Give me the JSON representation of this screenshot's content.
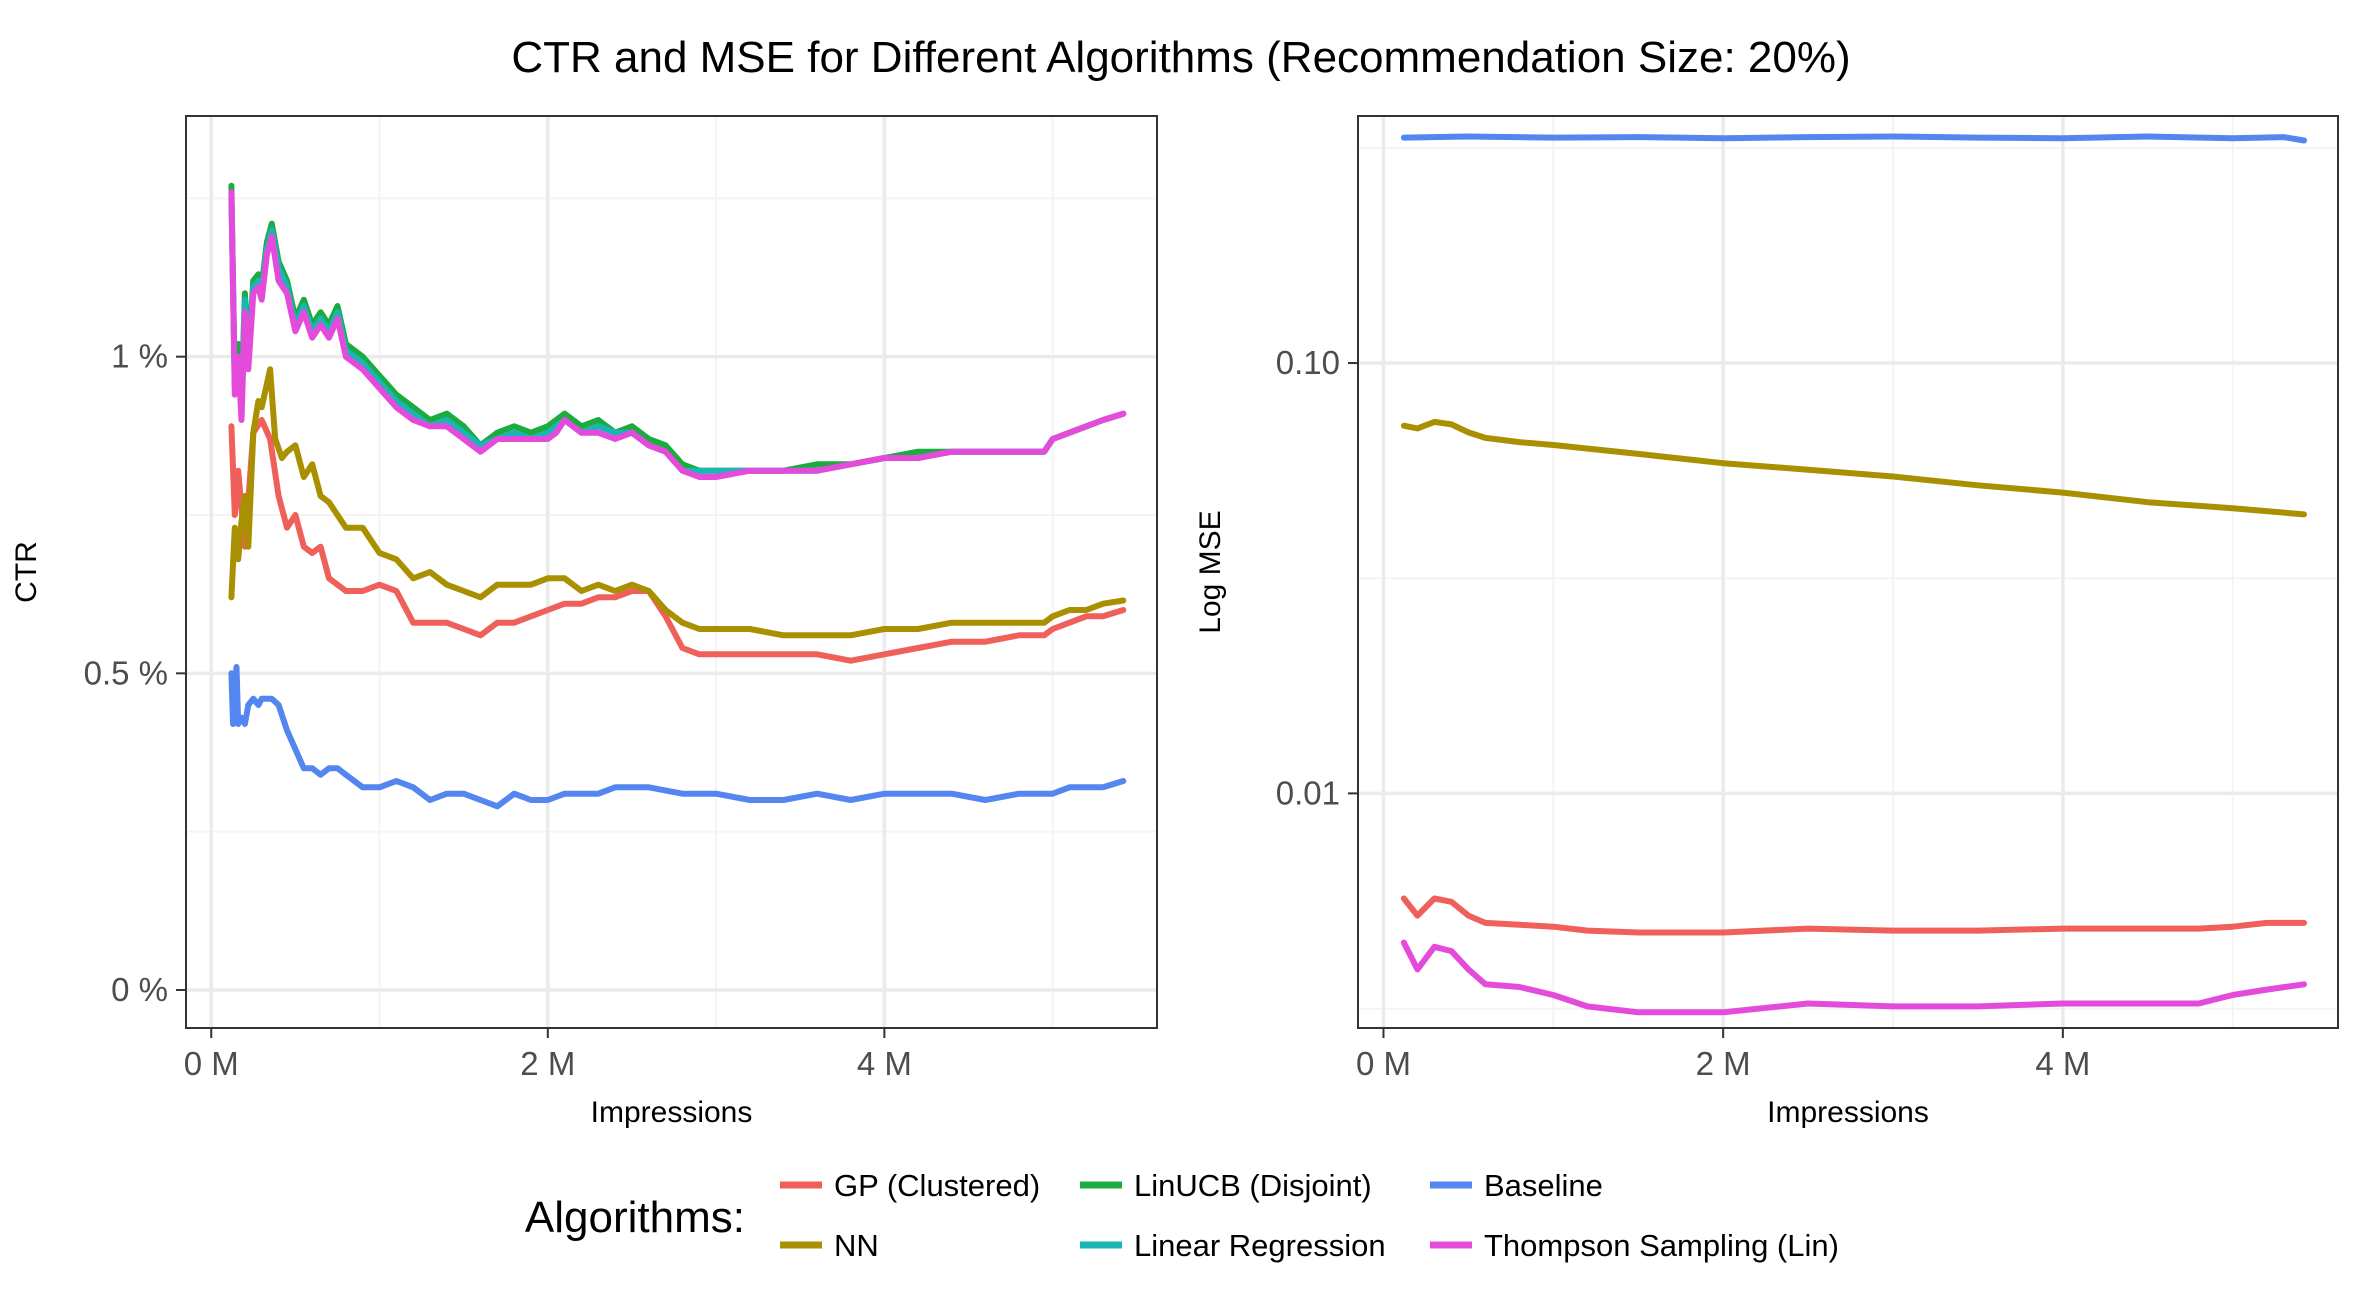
{
  "title": "CTR and MSE for Different Algorithms (Recommendation Size: 20%)",
  "legend": {
    "title": "Algorithms:",
    "entries": [
      {
        "name": "GP (Clustered)",
        "color": "#F0605A"
      },
      {
        "name": "NN",
        "color": "#A89000"
      },
      {
        "name": "LinUCB (Disjoint)",
        "color": "#1AAC3E"
      },
      {
        "name": "Linear Regression",
        "color": "#1BB5B5"
      },
      {
        "name": "Baseline",
        "color": "#5486F0"
      },
      {
        "name": "Thompson Sampling (Lin)",
        "color": "#E44BDB"
      }
    ]
  },
  "chart_data": [
    {
      "type": "line",
      "xlabel": "Impressions",
      "ylabel": "CTR",
      "xlim": [
        -0.15,
        5.62
      ],
      "ylim": [
        -0.06,
        1.38
      ],
      "xticks": [
        0,
        2,
        4
      ],
      "xtick_labels": [
        "0 M",
        "2 M",
        "4 M"
      ],
      "yticks": [
        0,
        0.5,
        1.0
      ],
      "ytick_labels": [
        "0 %",
        "0.5 %",
        "1 %"
      ],
      "x_unit": "million impressions",
      "y_unit": "percent",
      "grid": true,
      "series": [
        {
          "name": "GP (Clustered)",
          "color": "#F0605A",
          "x": [
            0.12,
            0.14,
            0.16,
            0.2,
            0.25,
            0.3,
            0.35,
            0.4,
            0.45,
            0.5,
            0.55,
            0.6,
            0.65,
            0.7,
            0.8,
            0.9,
            1.0,
            1.1,
            1.2,
            1.3,
            1.4,
            1.5,
            1.6,
            1.7,
            1.8,
            1.9,
            2.0,
            2.1,
            2.2,
            2.3,
            2.4,
            2.5,
            2.6,
            2.7,
            2.8,
            2.9,
            3.0,
            3.2,
            3.4,
            3.6,
            3.8,
            4.0,
            4.2,
            4.4,
            4.6,
            4.8,
            4.95,
            5.0,
            5.1,
            5.2,
            5.3,
            5.42
          ],
          "y": [
            0.89,
            0.75,
            0.82,
            0.7,
            0.88,
            0.9,
            0.87,
            0.78,
            0.73,
            0.75,
            0.7,
            0.69,
            0.7,
            0.65,
            0.63,
            0.63,
            0.64,
            0.63,
            0.58,
            0.58,
            0.58,
            0.57,
            0.56,
            0.58,
            0.58,
            0.59,
            0.6,
            0.61,
            0.61,
            0.62,
            0.62,
            0.63,
            0.63,
            0.59,
            0.54,
            0.53,
            0.53,
            0.53,
            0.53,
            0.53,
            0.52,
            0.53,
            0.54,
            0.55,
            0.55,
            0.56,
            0.56,
            0.57,
            0.58,
            0.59,
            0.59,
            0.6
          ]
        },
        {
          "name": "NN",
          "color": "#A89000",
          "x": [
            0.12,
            0.14,
            0.16,
            0.18,
            0.2,
            0.22,
            0.25,
            0.28,
            0.3,
            0.35,
            0.38,
            0.42,
            0.45,
            0.5,
            0.55,
            0.6,
            0.65,
            0.7,
            0.8,
            0.9,
            1.0,
            1.1,
            1.2,
            1.3,
            1.4,
            1.5,
            1.6,
            1.7,
            1.8,
            1.9,
            2.0,
            2.1,
            2.2,
            2.3,
            2.4,
            2.5,
            2.6,
            2.7,
            2.8,
            2.9,
            3.0,
            3.2,
            3.4,
            3.6,
            3.8,
            4.0,
            4.2,
            4.4,
            4.6,
            4.8,
            4.95,
            5.0,
            5.1,
            5.2,
            5.3,
            5.42
          ],
          "y": [
            0.62,
            0.73,
            0.68,
            0.74,
            0.78,
            0.7,
            0.88,
            0.93,
            0.92,
            0.98,
            0.87,
            0.84,
            0.85,
            0.86,
            0.81,
            0.83,
            0.78,
            0.77,
            0.73,
            0.73,
            0.69,
            0.68,
            0.65,
            0.66,
            0.64,
            0.63,
            0.62,
            0.64,
            0.64,
            0.64,
            0.65,
            0.65,
            0.63,
            0.64,
            0.63,
            0.64,
            0.63,
            0.6,
            0.58,
            0.57,
            0.57,
            0.57,
            0.56,
            0.56,
            0.56,
            0.57,
            0.57,
            0.58,
            0.58,
            0.58,
            0.58,
            0.59,
            0.6,
            0.6,
            0.61,
            0.615
          ]
        },
        {
          "name": "LinUCB (Disjoint)",
          "color": "#1AAC3E",
          "x": [
            0.12,
            0.14,
            0.16,
            0.18,
            0.2,
            0.22,
            0.25,
            0.28,
            0.3,
            0.33,
            0.36,
            0.4,
            0.45,
            0.5,
            0.55,
            0.6,
            0.65,
            0.7,
            0.75,
            0.8,
            0.9,
            1.0,
            1.1,
            1.2,
            1.3,
            1.4,
            1.5,
            1.6,
            1.7,
            1.8,
            1.9,
            2.0,
            2.05,
            2.1,
            2.2,
            2.3,
            2.4,
            2.5,
            2.6,
            2.7,
            2.8,
            2.9,
            3.0,
            3.2,
            3.4,
            3.6,
            3.8,
            4.0,
            4.2,
            4.4,
            4.6,
            4.8,
            4.95,
            5.0,
            5.1,
            5.2,
            5.3,
            5.42
          ],
          "y": [
            1.27,
            0.96,
            1.02,
            0.93,
            1.1,
            1.0,
            1.12,
            1.13,
            1.11,
            1.18,
            1.21,
            1.15,
            1.12,
            1.06,
            1.09,
            1.05,
            1.07,
            1.05,
            1.08,
            1.02,
            1.0,
            0.97,
            0.94,
            0.92,
            0.9,
            0.91,
            0.89,
            0.86,
            0.88,
            0.89,
            0.88,
            0.89,
            0.9,
            0.91,
            0.89,
            0.9,
            0.88,
            0.89,
            0.87,
            0.86,
            0.83,
            0.82,
            0.82,
            0.82,
            0.82,
            0.83,
            0.83,
            0.84,
            0.85,
            0.85,
            0.85,
            0.85,
            0.85,
            0.87,
            0.88,
            0.89,
            0.9,
            0.91
          ]
        },
        {
          "name": "Linear Regression",
          "color": "#1BB5B5",
          "x": [
            0.12,
            0.14,
            0.16,
            0.18,
            0.2,
            0.22,
            0.25,
            0.28,
            0.3,
            0.33,
            0.36,
            0.4,
            0.45,
            0.5,
            0.55,
            0.6,
            0.65,
            0.7,
            0.75,
            0.8,
            0.9,
            1.0,
            1.1,
            1.2,
            1.3,
            1.4,
            1.5,
            1.6,
            1.7,
            1.8,
            1.9,
            2.0,
            2.05,
            2.1,
            2.2,
            2.3,
            2.4,
            2.5,
            2.6,
            2.7,
            2.8,
            2.9,
            3.0,
            3.2,
            3.4,
            3.6,
            3.8,
            4.0,
            4.2,
            4.4,
            4.6,
            4.8,
            4.95,
            5.0,
            5.1,
            5.2,
            5.3,
            5.42
          ],
          "y": [
            1.25,
            0.95,
            1.0,
            0.92,
            1.09,
            0.99,
            1.11,
            1.12,
            1.1,
            1.17,
            1.2,
            1.14,
            1.11,
            1.05,
            1.08,
            1.04,
            1.06,
            1.04,
            1.07,
            1.01,
            0.99,
            0.96,
            0.93,
            0.91,
            0.89,
            0.9,
            0.88,
            0.86,
            0.87,
            0.88,
            0.87,
            0.88,
            0.89,
            0.9,
            0.88,
            0.89,
            0.88,
            0.88,
            0.86,
            0.85,
            0.82,
            0.82,
            0.82,
            0.82,
            0.82,
            0.82,
            0.83,
            0.84,
            0.84,
            0.85,
            0.85,
            0.85,
            0.85,
            0.87,
            0.88,
            0.89,
            0.9,
            0.91
          ]
        },
        {
          "name": "Baseline",
          "color": "#5486F0",
          "x": [
            0.12,
            0.13,
            0.14,
            0.15,
            0.16,
            0.18,
            0.2,
            0.22,
            0.25,
            0.28,
            0.3,
            0.33,
            0.36,
            0.4,
            0.45,
            0.5,
            0.55,
            0.6,
            0.65,
            0.7,
            0.75,
            0.8,
            0.9,
            1.0,
            1.1,
            1.2,
            1.3,
            1.4,
            1.5,
            1.6,
            1.7,
            1.8,
            1.9,
            2.0,
            2.1,
            2.2,
            2.3,
            2.4,
            2.6,
            2.8,
            3.0,
            3.2,
            3.4,
            3.6,
            3.8,
            4.0,
            4.2,
            4.4,
            4.6,
            4.8,
            4.95,
            5.0,
            5.1,
            5.2,
            5.3,
            5.42
          ],
          "y": [
            0.5,
            0.42,
            0.48,
            0.51,
            0.42,
            0.43,
            0.42,
            0.45,
            0.46,
            0.45,
            0.46,
            0.46,
            0.46,
            0.45,
            0.41,
            0.38,
            0.35,
            0.35,
            0.34,
            0.35,
            0.35,
            0.34,
            0.32,
            0.32,
            0.33,
            0.32,
            0.3,
            0.31,
            0.31,
            0.3,
            0.29,
            0.31,
            0.3,
            0.3,
            0.31,
            0.31,
            0.31,
            0.32,
            0.32,
            0.31,
            0.31,
            0.3,
            0.3,
            0.31,
            0.3,
            0.31,
            0.31,
            0.31,
            0.3,
            0.31,
            0.31,
            0.31,
            0.32,
            0.32,
            0.32,
            0.33
          ]
        },
        {
          "name": "Thompson Sampling (Lin)",
          "color": "#E44BDB",
          "x": [
            0.12,
            0.14,
            0.16,
            0.18,
            0.2,
            0.22,
            0.25,
            0.28,
            0.3,
            0.33,
            0.36,
            0.4,
            0.45,
            0.5,
            0.55,
            0.6,
            0.65,
            0.7,
            0.75,
            0.8,
            0.9,
            1.0,
            1.1,
            1.2,
            1.3,
            1.4,
            1.5,
            1.6,
            1.7,
            1.8,
            1.9,
            2.0,
            2.05,
            2.1,
            2.2,
            2.3,
            2.4,
            2.5,
            2.6,
            2.7,
            2.8,
            2.9,
            3.0,
            3.2,
            3.4,
            3.6,
            3.8,
            4.0,
            4.2,
            4.4,
            4.6,
            4.8,
            4.95,
            5.0,
            5.1,
            5.2,
            5.3,
            5.42
          ],
          "y": [
            1.26,
            0.94,
            1.0,
            0.9,
            1.07,
            0.98,
            1.1,
            1.11,
            1.09,
            1.16,
            1.19,
            1.12,
            1.1,
            1.04,
            1.07,
            1.03,
            1.05,
            1.03,
            1.06,
            1.0,
            0.98,
            0.95,
            0.92,
            0.9,
            0.89,
            0.89,
            0.87,
            0.85,
            0.87,
            0.87,
            0.87,
            0.87,
            0.88,
            0.9,
            0.88,
            0.88,
            0.87,
            0.88,
            0.86,
            0.85,
            0.82,
            0.81,
            0.81,
            0.82,
            0.82,
            0.82,
            0.83,
            0.84,
            0.84,
            0.85,
            0.85,
            0.85,
            0.85,
            0.87,
            0.88,
            0.89,
            0.9,
            0.91
          ]
        }
      ]
    },
    {
      "type": "line",
      "xlabel": "Impressions",
      "ylabel": "Log MSE",
      "yscale": "log",
      "xlim": [
        -0.15,
        5.62
      ],
      "ylim": [
        0.00285,
        0.375
      ],
      "xticks": [
        0,
        2,
        4
      ],
      "xtick_labels": [
        "0 M",
        "2 M",
        "4 M"
      ],
      "yticks": [
        0.01,
        0.1
      ],
      "ytick_labels": [
        "0.01",
        "0.10"
      ],
      "y_minor_gridlines": [
        0.00316,
        0.0316,
        0.316
      ],
      "x_unit": "million impressions",
      "grid": true,
      "series": [
        {
          "name": "Baseline",
          "color": "#5486F0",
          "x": [
            0.12,
            0.5,
            1.0,
            1.5,
            2.0,
            2.5,
            3.0,
            3.5,
            4.0,
            4.5,
            5.0,
            5.3,
            5.42
          ],
          "y": [
            0.334,
            0.336,
            0.334,
            0.335,
            0.333,
            0.335,
            0.336,
            0.334,
            0.333,
            0.336,
            0.333,
            0.335,
            0.329
          ]
        },
        {
          "name": "NN",
          "color": "#A89000",
          "x": [
            0.12,
            0.2,
            0.3,
            0.4,
            0.5,
            0.6,
            0.8,
            1.0,
            1.5,
            2.0,
            2.5,
            3.0,
            3.5,
            4.0,
            4.5,
            5.0,
            5.42
          ],
          "y": [
            0.0715,
            0.0705,
            0.073,
            0.072,
            0.069,
            0.067,
            0.0655,
            0.0645,
            0.0615,
            0.0585,
            0.0565,
            0.0545,
            0.052,
            0.05,
            0.0475,
            0.046,
            0.0445
          ]
        },
        {
          "name": "GP (Clustered)",
          "color": "#F0605A",
          "x": [
            0.12,
            0.2,
            0.3,
            0.4,
            0.5,
            0.6,
            0.8,
            1.0,
            1.2,
            1.5,
            2.0,
            2.5,
            3.0,
            3.5,
            4.0,
            4.5,
            4.8,
            5.0,
            5.2,
            5.42
          ],
          "y": [
            0.0057,
            0.0052,
            0.0057,
            0.0056,
            0.0052,
            0.005,
            0.00495,
            0.0049,
            0.0048,
            0.00475,
            0.00475,
            0.00485,
            0.0048,
            0.0048,
            0.00485,
            0.00485,
            0.00485,
            0.0049,
            0.005,
            0.005
          ]
        },
        {
          "name": "Thompson Sampling (Lin)",
          "color": "#E44BDB",
          "x": [
            0.12,
            0.2,
            0.3,
            0.4,
            0.5,
            0.6,
            0.8,
            1.0,
            1.2,
            1.5,
            2.0,
            2.5,
            3.0,
            3.5,
            4.0,
            4.5,
            4.8,
            5.0,
            5.2,
            5.42
          ],
          "y": [
            0.0045,
            0.0039,
            0.0044,
            0.0043,
            0.0039,
            0.0036,
            0.00355,
            0.0034,
            0.0032,
            0.0031,
            0.0031,
            0.00325,
            0.0032,
            0.0032,
            0.00325,
            0.00325,
            0.00325,
            0.0034,
            0.0035,
            0.0036
          ]
        }
      ]
    }
  ]
}
